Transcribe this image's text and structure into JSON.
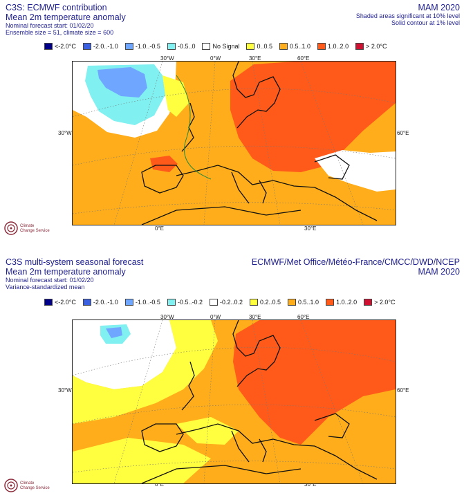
{
  "panel1": {
    "title": "C3S: ECMWF contribution",
    "subtitle": "Mean 2m temperature anomaly",
    "line3": "Nominal forecast start: 01/02/20",
    "line4": "Ensemble size = 51, climate size = 600",
    "period": "MAM 2020",
    "sig1": "Shaded areas significant at 10% level",
    "sig2": "Solid contour at 1% level",
    "legend": [
      {
        "label": "<-2.0°C",
        "color": "#00008b"
      },
      {
        "label": "-2.0..-1.0",
        "color": "#3a5fe0"
      },
      {
        "label": "-1.0..-0.5",
        "color": "#6fa6ff"
      },
      {
        "label": "-0.5..0",
        "color": "#80f0f0"
      },
      {
        "label": "No Signal",
        "color": "#ffffff"
      },
      {
        "label": "0..0.5",
        "color": "#ffff40"
      },
      {
        "label": "0.5..1.0",
        "color": "#ffad1a"
      },
      {
        "label": "1.0..2.0",
        "color": "#ff5a1a"
      },
      {
        "label": "> 2.0°C",
        "color": "#d01030"
      }
    ]
  },
  "panel2": {
    "title": "C3S multi-system seasonal forecast",
    "subtitle": "Mean 2m temperature anomaly",
    "line3": "Nominal forecast start: 01/02/20",
    "line4": "Variance-standardized mean",
    "providers": "ECMWF/Met Office/Météo-France/CMCC/DWD/NCEP",
    "period": "MAM 2020",
    "legend": [
      {
        "label": "<-2.0°C",
        "color": "#00008b"
      },
      {
        "label": "-2.0..-1.0",
        "color": "#3a5fe0"
      },
      {
        "label": "-1.0..-0.5",
        "color": "#6fa6ff"
      },
      {
        "label": "-0.5..-0.2",
        "color": "#80f0f0"
      },
      {
        "label": "-0.2..0.2",
        "color": "#ffffff"
      },
      {
        "label": "0.2..0.5",
        "color": "#ffff40"
      },
      {
        "label": "0.5..1.0",
        "color": "#ffad1a"
      },
      {
        "label": "1.0..2.0",
        "color": "#ff5a1a"
      },
      {
        "label": "> 2.0°C",
        "color": "#d01030"
      }
    ]
  },
  "axes": {
    "lon_30w": "30°W",
    "lon_0w": "0°W",
    "lon_30e": "30°E",
    "lon_60e": "60°E",
    "lat_30w": "30°W",
    "lat_60e": "60°E",
    "bot_0e": "0°E",
    "bot_30e": "30°E"
  },
  "logo": {
    "line1": "Climate",
    "line2": "Change Service"
  }
}
